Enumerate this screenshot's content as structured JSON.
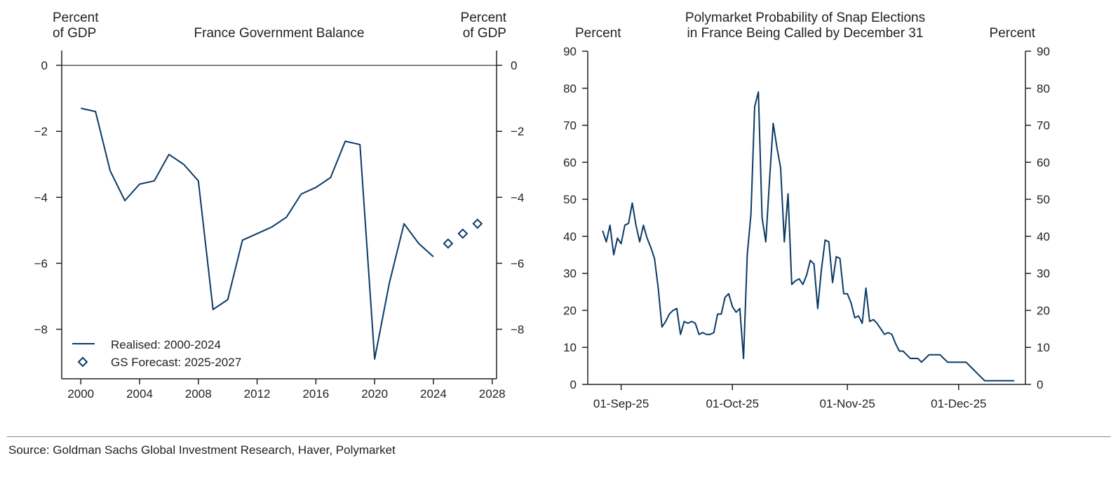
{
  "source": "Source: Goldman Sachs Global Investment Research, Haver, Polymarket",
  "colors": {
    "series": "#0b3a66",
    "axis": "#222222"
  },
  "chart_data": [
    {
      "type": "line",
      "title": "France Government Balance",
      "ylabel_left": [
        "Percent",
        "of GDP"
      ],
      "ylabel_right": [
        "Percent",
        "of GDP"
      ],
      "xlim": [
        1998.7,
        2028.3
      ],
      "ylim": [
        -9.5,
        0.45
      ],
      "xticks": [
        2000,
        2004,
        2008,
        2012,
        2016,
        2020,
        2024,
        2028
      ],
      "yticks": [
        0,
        -2,
        -4,
        -6,
        -8
      ],
      "ytick_labels": [
        "0",
        "−2",
        "−4",
        "−6",
        "−8"
      ],
      "zero_line": true,
      "grid": false,
      "legend_position": "bottom-left",
      "series": [
        {
          "name": "Realised: 2000-2024",
          "style": "line",
          "x": [
            2000,
            2001,
            2002,
            2003,
            2004,
            2005,
            2006,
            2007,
            2008,
            2009,
            2010,
            2011,
            2012,
            2013,
            2014,
            2015,
            2016,
            2017,
            2018,
            2019,
            2020,
            2021,
            2022,
            2023,
            2024
          ],
          "y": [
            -1.3,
            -1.4,
            -3.2,
            -4.1,
            -3.6,
            -3.5,
            -2.7,
            -3.0,
            -3.5,
            -7.4,
            -7.1,
            -5.3,
            -5.1,
            -4.9,
            -4.6,
            -3.9,
            -3.7,
            -3.4,
            -2.3,
            -2.4,
            -8.9,
            -6.6,
            -4.8,
            -5.4,
            -5.8
          ]
        },
        {
          "name": "GS Forecast: 2025-2027",
          "style": "diamond",
          "x": [
            2025,
            2026,
            2027
          ],
          "y": [
            -5.4,
            -5.1,
            -4.8
          ]
        }
      ]
    },
    {
      "type": "line",
      "title": [
        "Polymarket Probability of Snap Elections",
        "in France Being Called by December 31"
      ],
      "ylabel_left": "Percent",
      "ylabel_right": "Percent",
      "xlim": [
        "2025-08-23",
        "2025-12-19"
      ],
      "ylim": [
        0,
        90
      ],
      "yticks": [
        0,
        10,
        20,
        30,
        40,
        50,
        60,
        70,
        80,
        90
      ],
      "xticks": [
        "2025-09-01",
        "2025-10-01",
        "2025-11-01",
        "2025-12-01"
      ],
      "xtick_labels": [
        "01-Sep-25",
        "01-Oct-25",
        "01-Nov-25",
        "01-Dec-25"
      ],
      "grid": false,
      "series": [
        {
          "start": "2025-08-27",
          "frequency": "daily",
          "y": [
            41.5,
            38.5,
            43,
            35,
            39.5,
            38,
            43,
            43.5,
            49,
            43,
            38.5,
            43,
            39.5,
            37,
            34,
            26,
            15.5,
            17,
            19,
            20,
            20.5,
            13.5,
            17,
            16.5,
            17,
            16.5,
            13.5,
            14,
            13.5,
            13.5,
            14,
            19,
            19,
            23.5,
            24.5,
            21,
            19.5,
            20.5,
            7,
            35,
            46,
            75,
            79,
            45,
            38.5,
            55,
            70.5,
            64,
            58.5,
            38.5,
            51.5,
            27,
            28,
            28.5,
            27,
            29.5,
            33.5,
            32.5,
            20.5,
            31,
            39,
            38.5,
            27.5,
            34.5,
            34,
            24.5,
            24.5,
            22,
            18,
            18.5,
            16.5,
            26,
            17,
            17.5,
            16.5,
            15,
            13.5,
            14,
            13.5,
            11,
            9,
            9,
            8,
            7,
            7,
            7,
            6,
            7,
            8,
            8,
            8,
            8,
            7,
            6,
            6,
            6,
            6,
            6,
            6,
            5,
            4,
            3,
            2,
            1,
            1,
            1,
            1,
            1,
            1,
            1,
            1,
            1
          ]
        }
      ]
    }
  ]
}
